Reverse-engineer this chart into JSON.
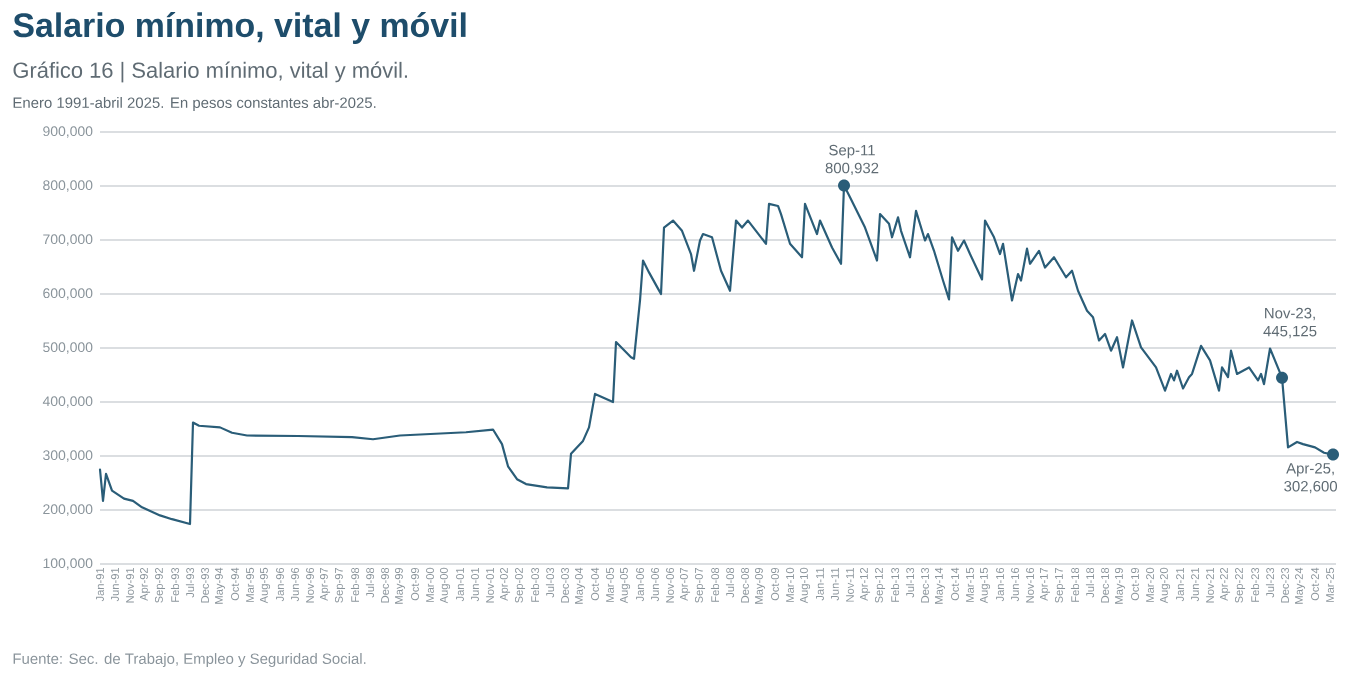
{
  "chart_data": {
    "type": "line",
    "title": "Salario mínimo, vital y móvil",
    "subtitle": "Gráfico 16 | Salario mínimo, vital y móvil.",
    "annotations": [
      "Enero 1991-abril 2025. En pesos constantes abr-2025.",
      {
        "text": "Sep-11 800,932",
        "x": "2011-09",
        "y": 800932
      },
      {
        "text": "Nov-23, 445,125",
        "x": "2023-11",
        "y": 445125
      },
      {
        "text": "Apr-25, 302,600",
        "x": "2025-04",
        "y": 302600
      },
      "Fuente: Sec. de Trabajo, Empleo y Seguridad Social."
    ],
    "color": "#2a5d78",
    "line_style": "solid",
    "grid": "y",
    "x": [
      "1991-01",
      "1991-02",
      "1991-03",
      "1991-05",
      "1991-09",
      "1991-12",
      "1992-03",
      "1992-09",
      "1993-01",
      "1993-07",
      "1993-08",
      "1993-10",
      "1994-05",
      "1994-09",
      "1995-02",
      "1996-07",
      "1998-01",
      "1998-08",
      "1999-05",
      "2000-04",
      "2001-03",
      "2001-12",
      "2002-03",
      "2002-05",
      "2002-08",
      "2002-11",
      "2003-06",
      "2004-01",
      "2004-02",
      "2004-06",
      "2004-08",
      "2004-10",
      "2005-04",
      "2005-05",
      "2005-10",
      "2005-11",
      "2006-01",
      "2006-02",
      "2006-04",
      "2006-07",
      "2006-08",
      "2006-09",
      "2006-12",
      "2007-03",
      "2007-06",
      "2007-07",
      "2007-09",
      "2007-10",
      "2008-01",
      "2008-04",
      "2008-07",
      "2008-09",
      "2008-11",
      "2009-01",
      "2009-07",
      "2009-08",
      "2009-11",
      "2009-12",
      "2010-03",
      "2010-07",
      "2010-08",
      "2010-12",
      "2011-01",
      "2011-05",
      "2011-08",
      "2011-09",
      "2011-11",
      "2012-04",
      "2012-08",
      "2012-09",
      "2012-12",
      "2013-01",
      "2013-03",
      "2013-04",
      "2013-07",
      "2013-09",
      "2013-12",
      "2014-01",
      "2014-03",
      "2014-06",
      "2014-08",
      "2014-09",
      "2014-11",
      "2015-01",
      "2015-03",
      "2015-07",
      "2015-08",
      "2015-11",
      "2016-01",
      "2016-02",
      "2016-05",
      "2016-07",
      "2016-08",
      "2016-10",
      "2016-11",
      "2017-02",
      "2017-04",
      "2017-07",
      "2017-11",
      "2018-01",
      "2018-03",
      "2018-06",
      "2018-08",
      "2018-10",
      "2018-12",
      "2019-02",
      "2019-04",
      "2019-06",
      "2019-09",
      "2019-12",
      "2020-05",
      "2020-08",
      "2020-10",
      "2020-11",
      "2020-12",
      "2021-02",
      "2021-04",
      "2021-05",
      "2021-08",
      "2021-11",
      "2022-02",
      "2022-03",
      "2022-05",
      "2022-06",
      "2022-08",
      "2022-12",
      "2023-03",
      "2023-04",
      "2023-05",
      "2023-07",
      "2023-11",
      "2024-01",
      "2024-04",
      "2024-06",
      "2024-10",
      "2025-01",
      "2025-04"
    ],
    "values": [
      275000,
      217000,
      267000,
      236000,
      221000,
      217000,
      205000,
      190000,
      183000,
      174000,
      362000,
      356000,
      353000,
      343000,
      338000,
      337000,
      335000,
      331000,
      338000,
      341000,
      344000,
      349000,
      322000,
      281000,
      257000,
      248000,
      242000,
      240000,
      304000,
      328000,
      353000,
      415000,
      400000,
      511000,
      483000,
      480000,
      588000,
      662000,
      640000,
      610000,
      600000,
      723000,
      736000,
      717000,
      674000,
      643000,
      699000,
      711000,
      705000,
      643000,
      606000,
      736000,
      723000,
      736000,
      693000,
      767000,
      763000,
      748000,
      693000,
      668000,
      767000,
      711000,
      736000,
      686000,
      656000,
      800932,
      779000,
      723000,
      662000,
      748000,
      730000,
      705000,
      742000,
      717000,
      668000,
      754000,
      699000,
      711000,
      680000,
      625000,
      590000,
      705000,
      680000,
      699000,
      674000,
      627000,
      736000,
      705000,
      674000,
      693000,
      588000,
      637000,
      625000,
      684000,
      656000,
      680000,
      649000,
      668000,
      631000,
      643000,
      606000,
      569000,
      557000,
      514000,
      526000,
      495000,
      520000,
      464000,
      551000,
      501000,
      464000,
      421000,
      452000,
      440000,
      458000,
      425000,
      446000,
      452000,
      504000,
      477000,
      421000,
      464000,
      446000,
      495000,
      452000,
      464000,
      440000,
      452000,
      433000,
      499000,
      445125,
      316000,
      326000,
      322000,
      316000,
      306000,
      302600
    ],
    "xlim": [
      "1991-01",
      "2025-05"
    ],
    "ylim": [
      100000,
      900000
    ],
    "yticks": [
      {
        "value": 100000,
        "label": "100,000"
      },
      {
        "value": 200000,
        "label": "200,000"
      },
      {
        "value": 300000,
        "label": "300,000"
      },
      {
        "value": 400000,
        "label": "400,000"
      },
      {
        "value": 500000,
        "label": "500,000"
      },
      {
        "value": 600000,
        "label": "600,000"
      },
      {
        "value": 700000,
        "label": "700,000"
      },
      {
        "value": 800000,
        "label": "800,000"
      },
      {
        "value": 900000,
        "label": "900,000"
      }
    ],
    "xticks": [
      {
        "value": "1991-01",
        "label": "Jan-91"
      },
      {
        "value": "1991-06",
        "label": "Jun-91"
      },
      {
        "value": "1991-11",
        "label": "Nov-91"
      },
      {
        "value": "1992-04",
        "label": "Apr-92"
      },
      {
        "value": "1992-09",
        "label": "Sep-92"
      },
      {
        "value": "1993-02",
        "label": "Feb-93"
      },
      {
        "value": "1993-07",
        "label": "Jul-93"
      },
      {
        "value": "1993-12",
        "label": "Dec-93"
      },
      {
        "value": "1994-05",
        "label": "May-94"
      },
      {
        "value": "1994-10",
        "label": "Oct-94"
      },
      {
        "value": "1995-03",
        "label": "Mar-95"
      },
      {
        "value": "1995-08",
        "label": "Aug-95"
      },
      {
        "value": "1996-01",
        "label": "Jan-96"
      },
      {
        "value": "1996-06",
        "label": "Jun-96"
      },
      {
        "value": "1996-11",
        "label": "Nov-96"
      },
      {
        "value": "1997-04",
        "label": "Apr-97"
      },
      {
        "value": "1997-09",
        "label": "Sep-97"
      },
      {
        "value": "1998-02",
        "label": "Feb-98"
      },
      {
        "value": "1998-07",
        "label": "Jul-98"
      },
      {
        "value": "1998-12",
        "label": "Dec-98"
      },
      {
        "value": "1999-05",
        "label": "May-99"
      },
      {
        "value": "1999-10",
        "label": "Oct-99"
      },
      {
        "value": "2000-03",
        "label": "Mar-00"
      },
      {
        "value": "2000-08",
        "label": "Aug-00"
      },
      {
        "value": "2001-01",
        "label": "Jan-01"
      },
      {
        "value": "2001-06",
        "label": "Jun-01"
      },
      {
        "value": "2001-11",
        "label": "Nov-01"
      },
      {
        "value": "2002-04",
        "label": "Apr-02"
      },
      {
        "value": "2002-09",
        "label": "Sep-02"
      },
      {
        "value": "2003-02",
        "label": "Feb-03"
      },
      {
        "value": "2003-07",
        "label": "Jul-03"
      },
      {
        "value": "2003-12",
        "label": "Dec-03"
      },
      {
        "value": "2004-05",
        "label": "May-04"
      },
      {
        "value": "2004-10",
        "label": "Oct-04"
      },
      {
        "value": "2005-03",
        "label": "Mar-05"
      },
      {
        "value": "2005-08",
        "label": "Aug-05"
      },
      {
        "value": "2006-01",
        "label": "Jan-06"
      },
      {
        "value": "2006-06",
        "label": "Jun-06"
      },
      {
        "value": "2006-11",
        "label": "Nov-06"
      },
      {
        "value": "2007-04",
        "label": "Apr-07"
      },
      {
        "value": "2007-09",
        "label": "Sep-07"
      },
      {
        "value": "2008-02",
        "label": "Feb-08"
      },
      {
        "value": "2008-07",
        "label": "Jul-08"
      },
      {
        "value": "2008-12",
        "label": "Dec-08"
      },
      {
        "value": "2009-05",
        "label": "May-09"
      },
      {
        "value": "2009-10",
        "label": "Oct-09"
      },
      {
        "value": "2010-03",
        "label": "Mar-10"
      },
      {
        "value": "2010-08",
        "label": "Aug-10"
      },
      {
        "value": "2011-01",
        "label": "Jan-11"
      },
      {
        "value": "2011-06",
        "label": "Jun-11"
      },
      {
        "value": "2011-11",
        "label": "Nov-11"
      },
      {
        "value": "2012-04",
        "label": "Apr-12"
      },
      {
        "value": "2012-09",
        "label": "Sep-12"
      },
      {
        "value": "2013-02",
        "label": "Feb-13"
      },
      {
        "value": "2013-07",
        "label": "Jul-13"
      },
      {
        "value": "2013-12",
        "label": "Dec-13"
      },
      {
        "value": "2014-05",
        "label": "May-14"
      },
      {
        "value": "2014-10",
        "label": "Oct-14"
      },
      {
        "value": "2015-03",
        "label": "Mar-15"
      },
      {
        "value": "2015-08",
        "label": "Aug-15"
      },
      {
        "value": "2016-01",
        "label": "Jan-16"
      },
      {
        "value": "2016-06",
        "label": "Jun-16"
      },
      {
        "value": "2016-11",
        "label": "Nov-16"
      },
      {
        "value": "2017-04",
        "label": "Apr-17"
      },
      {
        "value": "2017-09",
        "label": "Sep-17"
      },
      {
        "value": "2018-02",
        "label": "Feb-18"
      },
      {
        "value": "2018-07",
        "label": "Jul-18"
      },
      {
        "value": "2018-12",
        "label": "Dec-18"
      },
      {
        "value": "2019-05",
        "label": "May-19"
      },
      {
        "value": "2019-10",
        "label": "Oct-19"
      },
      {
        "value": "2020-03",
        "label": "Mar-20"
      },
      {
        "value": "2020-08",
        "label": "Aug-20"
      },
      {
        "value": "2021-01",
        "label": "Jan-21"
      },
      {
        "value": "2021-06",
        "label": "Jun-21"
      },
      {
        "value": "2021-11",
        "label": "Nov-21"
      },
      {
        "value": "2022-04",
        "label": "Apr-22"
      },
      {
        "value": "2022-09",
        "label": "Sep-22"
      },
      {
        "value": "2023-02",
        "label": "Feb-23"
      },
      {
        "value": "2023-07",
        "label": "Jul-23"
      },
      {
        "value": "2023-12",
        "label": "Dec-23"
      },
      {
        "value": "2024-05",
        "label": "May-24"
      },
      {
        "value": "2024-10",
        "label": "Oct-24"
      },
      {
        "value": "2025-03",
        "label": "Mar-25"
      }
    ]
  }
}
